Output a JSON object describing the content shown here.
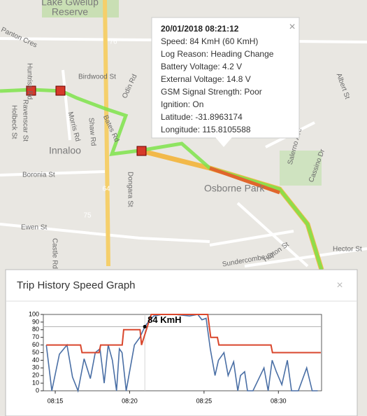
{
  "map": {
    "labels": [
      "Lake Gwelup",
      "Reserve",
      "Panton Cres",
      "Birdwood St",
      "Innaloo",
      "Boronia St",
      "Ewen St",
      "Osborne Park",
      "Sundercombe St",
      "Hutton St",
      "Hector St",
      "Dongara St",
      "Huntriss Rd",
      "Ravenscar St",
      "Holbeck St",
      "Morris Rd",
      "Shaw Rd",
      "Bates Rd",
      "Odin Rd",
      "Castle Rd",
      "Salerno Ave",
      "Cassino Dr",
      "Albert St",
      "76",
      "64",
      "75"
    ]
  },
  "popup": {
    "title": "20/01/2018 08:21:12",
    "lines": [
      "Speed: 84 KmH (60 KmH)",
      "Log Reason: Heading Change",
      "Battery Voltage: 4.2 V",
      "External Voltage: 14.8 V",
      "GSM Signal Strength: Poor",
      "Ignition: On",
      "Latitude: -31.8963174",
      "Longitude: 115.8105588"
    ],
    "close": "×"
  },
  "panel": {
    "title": "Trip History Speed Graph",
    "close": "×"
  },
  "chart_data": {
    "type": "line",
    "xlim": [
      14.2,
      32.9
    ],
    "xticks": [
      {
        "value": 15,
        "label": "08:15"
      },
      {
        "value": 20,
        "label": "08:20"
      },
      {
        "value": 25,
        "label": "08:25"
      },
      {
        "value": 30,
        "label": "08:30"
      }
    ],
    "ylim": [
      0,
      100
    ],
    "yticks": [
      0,
      10,
      20,
      30,
      40,
      50,
      60,
      70,
      80,
      90,
      100
    ],
    "annotation": {
      "text": "84 KmH",
      "x": 21.02,
      "y": 84
    },
    "series": [
      {
        "color": "#4a6fa5",
        "x": [
          14.4,
          14.77,
          15.28,
          15.79,
          16.16,
          16.53,
          16.94,
          17.36,
          17.69,
          18.01,
          18.29,
          18.56,
          18.84,
          19.12,
          19.31,
          19.49,
          19.77,
          19.95,
          20.32,
          20.69,
          21.02,
          21.25,
          21.62,
          22.18,
          23.1,
          24.03,
          24.58,
          24.86,
          25.14,
          25.42,
          25.74,
          25.97,
          26.34,
          26.62,
          26.99,
          27.27,
          27.45,
          27.73,
          27.92,
          28.29,
          29.03,
          29.31,
          29.58,
          29.86,
          30.23,
          30.6,
          30.88,
          31.34,
          31.9,
          32.27,
          32.64
        ],
        "values": [
          60,
          0,
          48,
          60,
          18,
          0,
          42,
          16,
          50,
          55,
          10,
          60,
          40,
          0,
          55,
          50,
          0,
          20,
          60,
          70,
          84,
          90,
          98,
          100,
          100,
          98,
          100,
          93,
          95,
          55,
          20,
          40,
          50,
          20,
          38,
          0,
          20,
          25,
          0,
          0,
          30,
          0,
          40,
          25,
          8,
          40,
          0,
          0,
          30,
          0,
          0
        ]
      },
      {
        "color": "#d9462c",
        "x": [
          14.4,
          16.7,
          16.8,
          17.95,
          18.05,
          19.5,
          19.6,
          20.7,
          20.8,
          21.45,
          25.25,
          25.45,
          25.9,
          26.0,
          29.5,
          29.6,
          32.85
        ],
        "values": [
          60,
          60,
          50,
          50,
          60,
          60,
          80,
          80,
          60,
          100,
          100,
          70,
          70,
          60,
          60,
          50,
          50
        ]
      }
    ]
  }
}
